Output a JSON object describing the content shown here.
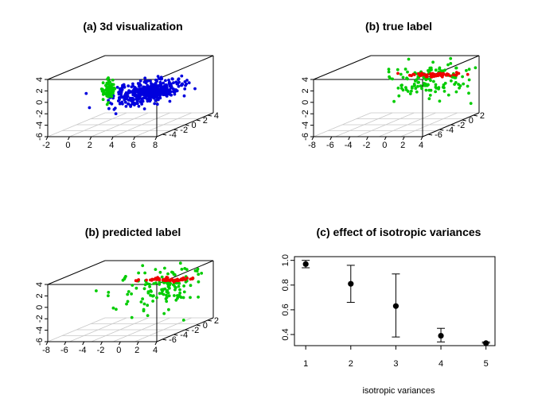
{
  "chart_data": [
    {
      "type": "scatter",
      "title": "(a) 3d visualization",
      "x_ticks": [
        "-2",
        "0",
        "2",
        "4",
        "6",
        "8"
      ],
      "y_ticks": [
        "-4",
        "-2",
        "0",
        "2",
        "4"
      ],
      "z_ticks": [
        "-6",
        "-4",
        "-2",
        "0",
        "2",
        "4"
      ],
      "xlim": [
        -2,
        8
      ],
      "ylim": [
        -5,
        4
      ],
      "zlim": [
        -6,
        4
      ],
      "series": [
        {
          "color": "#0000dd",
          "center": [
            4.3,
            0,
            -0.5
          ],
          "spread": [
            1.2,
            1.8,
            0.7
          ],
          "n": 420
        },
        {
          "color": "#00cc00",
          "center": [
            1.6,
            -1.5,
            0.6
          ],
          "spread": [
            0.2,
            0.3,
            0.9
          ],
          "n": 70
        }
      ]
    },
    {
      "type": "scatter",
      "title": "(b) true label",
      "x_ticks": [
        "-8",
        "-6",
        "-4",
        "-2",
        "0",
        "2",
        "4"
      ],
      "y_ticks": [
        "-6",
        "-4",
        "-2",
        "0",
        "2"
      ],
      "z_ticks": [
        "-6",
        "-4",
        "-2",
        "0",
        "2",
        "4"
      ],
      "xlim": [
        -8,
        4
      ],
      "ylim": [
        -7,
        2.5
      ],
      "zlim": [
        -6,
        4
      ],
      "series": [
        {
          "color": "#00cc00",
          "center": [
            0,
            0,
            0.5
          ],
          "spread": [
            2,
            2,
            1.6
          ],
          "n": 130
        },
        {
          "color": "#ee0000",
          "center": [
            0.6,
            0.3,
            1.6
          ],
          "spread": [
            1.4,
            0.15,
            0.15
          ],
          "n": 60
        }
      ]
    },
    {
      "type": "scatter",
      "title": "(b) predicted label",
      "x_ticks": [
        "-8",
        "-6",
        "-4",
        "-2",
        "0",
        "2",
        "4"
      ],
      "y_ticks": [
        "-6",
        "-4",
        "-2",
        "0",
        "2"
      ],
      "z_ticks": [
        "-6",
        "-4",
        "-2",
        "0",
        "2",
        "4"
      ],
      "xlim": [
        -8,
        4
      ],
      "ylim": [
        -7,
        2.5
      ],
      "zlim": [
        -6,
        4
      ],
      "series": [
        {
          "color": "#00cc00",
          "center": [
            0,
            0,
            0.5
          ],
          "spread": [
            2,
            2,
            1.6
          ],
          "n": 130
        },
        {
          "color": "#ee0000",
          "center": [
            0.6,
            0.3,
            1.6
          ],
          "spread": [
            1.4,
            0.15,
            0.15
          ],
          "n": 60
        }
      ]
    },
    {
      "type": "scatter",
      "title": "(c) effect of isotropic variances",
      "xlabel": "isotropic variances",
      "ylabel": "",
      "x": [
        1,
        2,
        3,
        4,
        5
      ],
      "y": [
        0.97,
        0.81,
        0.63,
        0.39,
        0.33
      ],
      "err_low": [
        0.94,
        0.66,
        0.38,
        0.34,
        0.33
      ],
      "err_high": [
        1.0,
        0.96,
        0.89,
        0.45,
        0.34
      ],
      "x_ticks": [
        "1",
        "2",
        "3",
        "4",
        "5"
      ],
      "y_ticks": [
        "0.4",
        "0.6",
        "0.8",
        "1.0"
      ],
      "xlim": [
        0.75,
        5.2
      ],
      "ylim": [
        0.31,
        1.03
      ],
      "grid": false
    }
  ]
}
